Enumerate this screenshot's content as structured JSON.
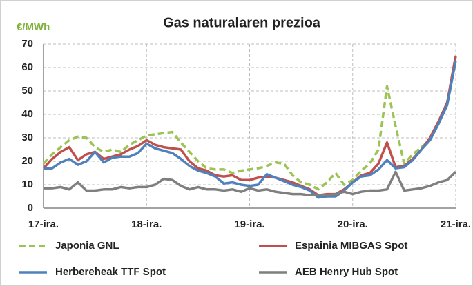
{
  "chart_data": {
    "type": "line",
    "title": "Gas naturalaren prezioa",
    "y_label": "€/MWh",
    "categories": [
      "17-ira.",
      null,
      null,
      null,
      null,
      null,
      null,
      null,
      null,
      null,
      null,
      null,
      "18-ira.",
      null,
      null,
      null,
      null,
      null,
      null,
      null,
      null,
      null,
      null,
      null,
      "19-ira.",
      null,
      null,
      null,
      null,
      null,
      null,
      null,
      null,
      null,
      null,
      null,
      "20-ira.",
      null,
      null,
      null,
      null,
      null,
      null,
      null,
      null,
      null,
      null,
      null,
      "21-ira."
    ],
    "series": [
      {
        "name": "Japonia GNL",
        "color": "#9bc455",
        "dashed": true,
        "values": [
          19,
          23,
          26,
          29,
          30.5,
          30,
          26,
          24,
          25,
          24,
          27,
          29,
          31,
          31.5,
          32,
          32.5,
          28,
          24,
          20,
          17,
          16.5,
          16.5,
          15,
          16,
          16.5,
          17,
          18,
          19.5,
          19,
          14,
          11,
          10,
          8,
          11,
          15,
          10,
          12,
          16,
          19,
          25,
          52,
          35,
          19,
          23,
          26,
          29,
          36,
          45,
          65
        ]
      },
      {
        "name": "Espainia MIBGAS Spot",
        "color": "#c0504d",
        "dashed": false,
        "values": [
          17,
          21,
          24,
          26,
          20.5,
          23,
          24,
          21,
          22,
          23,
          25,
          26.5,
          29,
          27,
          26,
          25.5,
          25,
          20,
          17,
          16,
          14,
          13.5,
          14,
          12,
          12,
          13,
          13.5,
          13,
          12,
          11,
          9.5,
          8,
          5.5,
          6,
          6,
          8,
          11,
          14,
          15,
          19,
          28,
          17.5,
          18,
          21,
          25,
          30,
          37,
          45,
          65
        ]
      },
      {
        "name": "Herbereheak TTF Spot",
        "color": "#4f81bd",
        "dashed": false,
        "values": [
          17,
          17,
          19.5,
          21,
          18.5,
          20,
          24,
          19.5,
          21.5,
          22,
          22,
          23.5,
          27.5,
          25.5,
          24.5,
          23.5,
          21,
          18,
          16,
          15,
          13.5,
          10.5,
          11,
          10,
          9.5,
          10,
          14.5,
          13,
          11.5,
          10,
          9,
          7.5,
          4.5,
          5,
          5,
          7.5,
          11,
          13.5,
          14,
          16.5,
          20.5,
          17,
          17.5,
          20.5,
          25,
          29,
          36,
          44,
          63
        ]
      },
      {
        "name": "AEB Henry Hub Spot",
        "color": "#7f7f7f",
        "dashed": false,
        "values": [
          8.5,
          8.5,
          9,
          8,
          11,
          7.5,
          7.5,
          8,
          8,
          9,
          8.5,
          9,
          9,
          10,
          12.5,
          12,
          9.5,
          8,
          9,
          8,
          8,
          7.5,
          8,
          7,
          8.5,
          7.5,
          8,
          7,
          6.5,
          6,
          6,
          5.5,
          5.5,
          5.5,
          6,
          7,
          6,
          7,
          7.5,
          7.5,
          8,
          15.5,
          7.5,
          8,
          8.5,
          9.5,
          11,
          12,
          15.5
        ]
      }
    ],
    "ylim": [
      0,
      70
    ],
    "yticks": [
      0,
      10,
      20,
      30,
      40,
      50,
      60,
      70
    ],
    "grid": true
  }
}
